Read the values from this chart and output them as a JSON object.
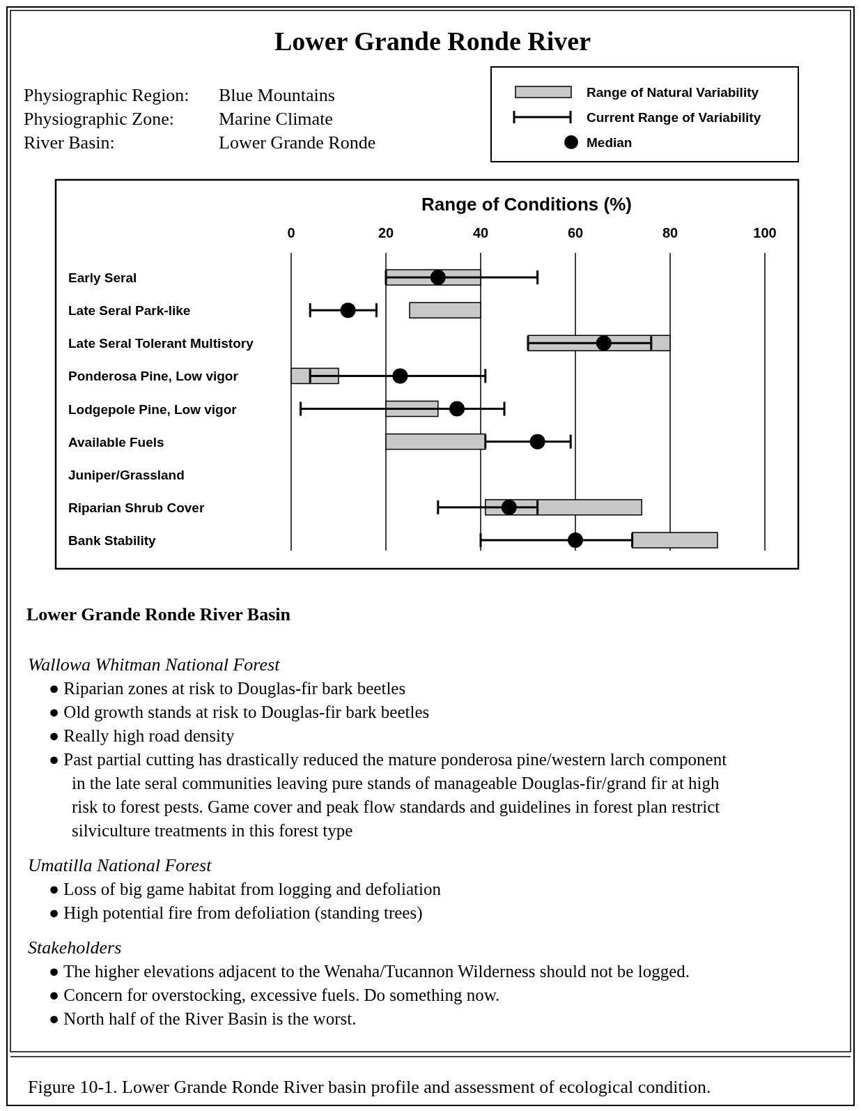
{
  "chart_data": {
    "type": "bar",
    "orientation": "horizontal",
    "title": "Lower Grande Ronde River",
    "subtitle": "Physiographic Region: Blue Mountains\nPhysiographic Zone: Marine Climate\nRiver Basin: Lower Grande Ronde",
    "xlabel": "Range of Conditions (%)",
    "categories": [
      "Early Seral",
      "Late Seral Park-like",
      "Late Seral Tolerant Multistory",
      "Ponderosa Pine, Low vigor",
      "Lodgepole Pine, Low vigor",
      "Available Fuels",
      "Juniper/Grassland",
      "Riparian Shrub Cover",
      "Bank Stability"
    ],
    "xlim": [
      0,
      100
    ],
    "xticks": [
      0,
      20,
      40,
      60,
      80,
      100
    ],
    "grid": "x",
    "legend": "top right",
    "series": [
      {
        "name": "Range of Natural Variability",
        "color": "#c8c8c8",
        "base": [
          20,
          25,
          50,
          0,
          20,
          20,
          null,
          41,
          72
        ],
        "values": [
          20,
          15,
          30,
          10,
          11,
          21,
          null,
          33,
          18
        ]
      },
      {
        "name": "Current Range of Variability",
        "color": "#000000",
        "base": [
          20,
          4,
          50,
          4,
          2,
          41,
          null,
          31,
          40
        ],
        "values": [
          32,
          14,
          26,
          37,
          43,
          18,
          null,
          21,
          32
        ]
      },
      {
        "name": "Median",
        "type": "scatter",
        "marker": "circle",
        "color": "#000000",
        "values": [
          31,
          12,
          66,
          23,
          35,
          52,
          null,
          46,
          60
        ]
      }
    ],
    "annotations": [
      "Lower Grande Ronde River Basin",
      "Wallowa Whitman National Forest",
      "● Riparian zones at risk to Douglas-fir bark beetles",
      "● Old growth stands at risk to Douglas-fir bark beetles",
      "● Really high road density",
      "● Past partial cutting has drastically reduced the mature ponderosa pine/western larch component in the late seral communities leaving pure stands of manageable Douglas-fir/grand fir at high risk to forest pests.  Game cover and peak flow standards and guidelines in forest plan restrict silviculture treatments in this forest type",
      "Umatilla National Forest",
      "● Loss of big game habitat from logging and defoliation",
      "● High potential fire from defoliation (standing trees)",
      "Stakeholders",
      "● The higher elevations adjacent to the Wenaha/Tucannon Wilderness should not be logged.",
      "● Concern for overstocking, excessive fuels.  Do something now.",
      "● North half of the River Basin is the worst.",
      "Figure 10-1. Lower Grande Ronde River basin profile and assessment of ecological condition."
    ]
  }
}
